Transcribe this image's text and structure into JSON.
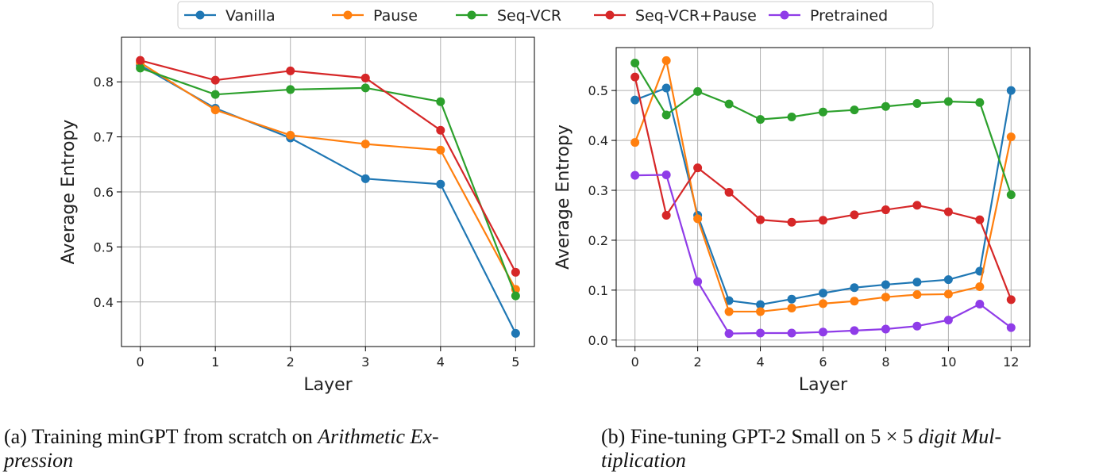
{
  "chart_data": [
    {
      "type": "line",
      "xlabel": "Layer",
      "ylabel": "Average Entropy",
      "grid": true,
      "x": [
        0,
        1,
        2,
        3,
        4,
        5
      ],
      "xlim": [
        -0.25,
        5.25
      ],
      "xticks": [
        0,
        1,
        2,
        3,
        4,
        5
      ],
      "ylim": [
        0.319,
        0.881
      ],
      "yticks": [
        0.4,
        0.5,
        0.6,
        0.7,
        0.8
      ],
      "series": [
        {
          "name": "Vanilla",
          "color": "#1f77b4",
          "values": [
            0.83,
            0.752,
            0.698,
            0.624,
            0.614,
            0.343
          ]
        },
        {
          "name": "Pause",
          "color": "#ff7f0e",
          "values": [
            0.835,
            0.749,
            0.703,
            0.687,
            0.676,
            0.423
          ]
        },
        {
          "name": "Seq-VCR",
          "color": "#2ca02c",
          "values": [
            0.825,
            0.777,
            0.786,
            0.789,
            0.764,
            0.411
          ]
        },
        {
          "name": "Seq-VCR+Pause",
          "color": "#d62728",
          "values": [
            0.839,
            0.803,
            0.82,
            0.807,
            0.712,
            0.454
          ]
        }
      ],
      "caption": [
        [
          {
            "text": "(a) Training minGPT from scratch on ",
            "italic": false
          },
          {
            "text": "Arithmetic Ex-",
            "italic": true
          }
        ],
        [
          {
            "text": "pression",
            "italic": true
          }
        ]
      ]
    },
    {
      "type": "line",
      "xlabel": "Layer",
      "ylabel": "Average Entropy",
      "grid": true,
      "x": [
        0,
        1,
        2,
        3,
        4,
        5,
        6,
        7,
        8,
        9,
        10,
        11,
        12
      ],
      "xlim": [
        -0.6,
        12.6
      ],
      "xticks": [
        0,
        2,
        4,
        6,
        8,
        10,
        12
      ],
      "ylim": [
        -0.013,
        0.586
      ],
      "yticks": [
        {
          "value": 0,
          "label": "0.0"
        },
        0.1,
        0.2,
        0.3,
        0.4,
        0.5
      ],
      "series": [
        {
          "name": "Vanilla",
          "color": "#1f77b4",
          "values": [
            0.481,
            0.505,
            0.25,
            0.079,
            0.071,
            0.082,
            0.094,
            0.105,
            0.111,
            0.116,
            0.121,
            0.138,
            0.5
          ]
        },
        {
          "name": "Pause",
          "color": "#ff7f0e",
          "values": [
            0.396,
            0.56,
            0.243,
            0.057,
            0.057,
            0.064,
            0.073,
            0.078,
            0.086,
            0.091,
            0.092,
            0.107,
            0.407
          ]
        },
        {
          "name": "Seq-VCR",
          "color": "#2ca02c",
          "values": [
            0.555,
            0.451,
            0.498,
            0.473,
            0.442,
            0.447,
            0.457,
            0.461,
            0.468,
            0.474,
            0.478,
            0.476,
            0.291
          ]
        },
        {
          "name": "Seq-VCR+Pause",
          "color": "#d62728",
          "values": [
            0.527,
            0.25,
            0.345,
            0.296,
            0.241,
            0.236,
            0.24,
            0.251,
            0.261,
            0.27,
            0.257,
            0.241,
            0.081
          ]
        },
        {
          "name": "Pretrained",
          "color": "#8f3ce8",
          "values": [
            0.33,
            0.331,
            0.117,
            0.013,
            0.014,
            0.014,
            0.016,
            0.019,
            0.022,
            0.028,
            0.04,
            0.072,
            0.025
          ]
        }
      ],
      "caption": [
        [
          {
            "text": "(b) Fine-tuning GPT-2 Small on ",
            "italic": false
          },
          {
            "text": "5 × 5 ",
            "italic": false
          },
          {
            "text": "digit Mul-",
            "italic": true
          }
        ],
        [
          {
            "text": "tiplication",
            "italic": true
          }
        ]
      ]
    }
  ]
}
